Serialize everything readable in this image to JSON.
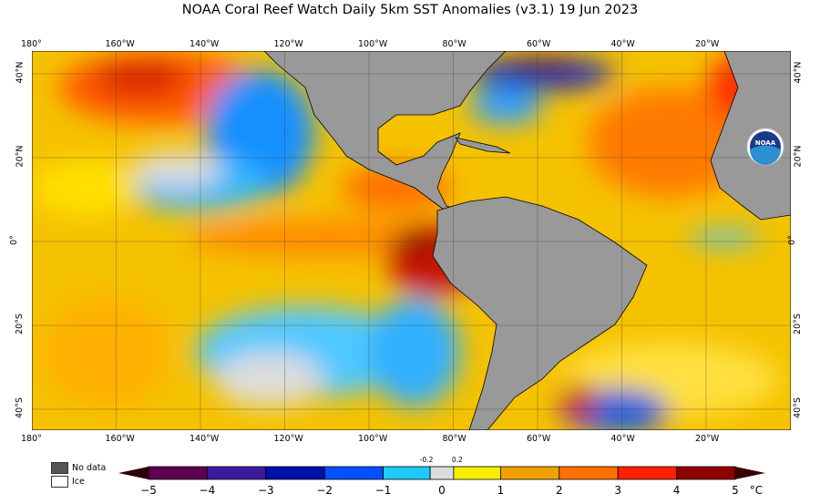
{
  "title": "NOAA Coral Reef Watch Daily 5km SST Anomalies  (v3.1)   19 Jun 2023",
  "lon_labels": [
    "180°",
    "160°W",
    "140°W",
    "120°W",
    "100°W",
    "80°W",
    "60°W",
    "40°W",
    "20°W"
  ],
  "lat_labels_left": [
    "40°N",
    "20°N",
    "0°",
    "20°S",
    "40°S"
  ],
  "lat_labels_right": [
    "40°N",
    "20°N",
    "0°",
    "20°S",
    "40°S"
  ],
  "legend": {
    "no_data": "No data",
    "ice": "Ice",
    "no_data_color": "#555555",
    "ice_color": "#ffffff"
  },
  "colorbar": {
    "ticks": [
      "−5",
      "−4",
      "−3",
      "−2",
      "−1",
      "0",
      "1",
      "2",
      "3",
      "4",
      "5"
    ],
    "small_ticks": [
      "-0.2",
      "0.2"
    ],
    "unit": "°C",
    "colors": [
      "#5e0050",
      "#3a1a9a",
      "#0010a8",
      "#0050ff",
      "#20c8ff",
      "#dddddd",
      "#f5ee00",
      "#f0a000",
      "#ff7000",
      "#ff2000",
      "#900000"
    ]
  },
  "logo": "NOAA"
}
